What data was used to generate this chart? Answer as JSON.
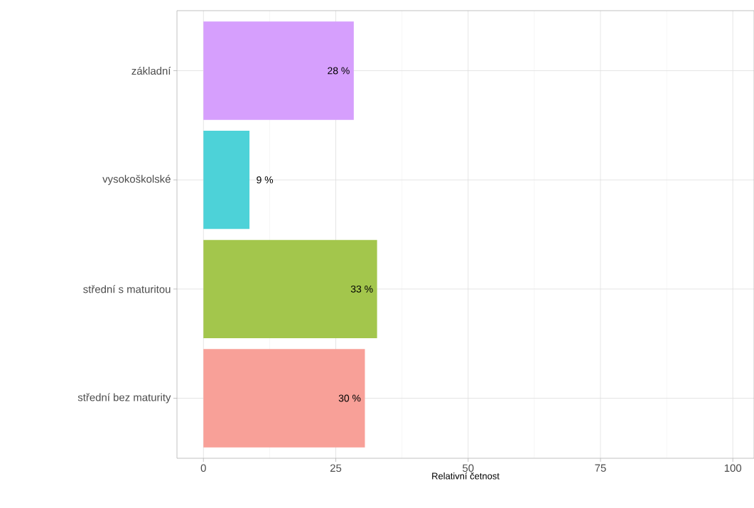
{
  "chart_data": {
    "type": "bar",
    "orientation": "horizontal",
    "xlabel": "Relativní četnost",
    "categories": [
      "základní",
      "vysokoškolské",
      "střední s maturitou",
      "střední bez maturity"
    ],
    "values": [
      28.4,
      8.7,
      32.8,
      30.5
    ],
    "value_labels": [
      "28 %",
      "9 %",
      "33 %",
      "30 %"
    ],
    "colors": [
      "#d69ffd",
      "#4dd2d8",
      "#a3c64c",
      "#f8a098"
    ],
    "xlim": [
      -5,
      104
    ],
    "xticks": [
      0,
      25,
      50,
      75,
      100
    ],
    "grid": true
  }
}
